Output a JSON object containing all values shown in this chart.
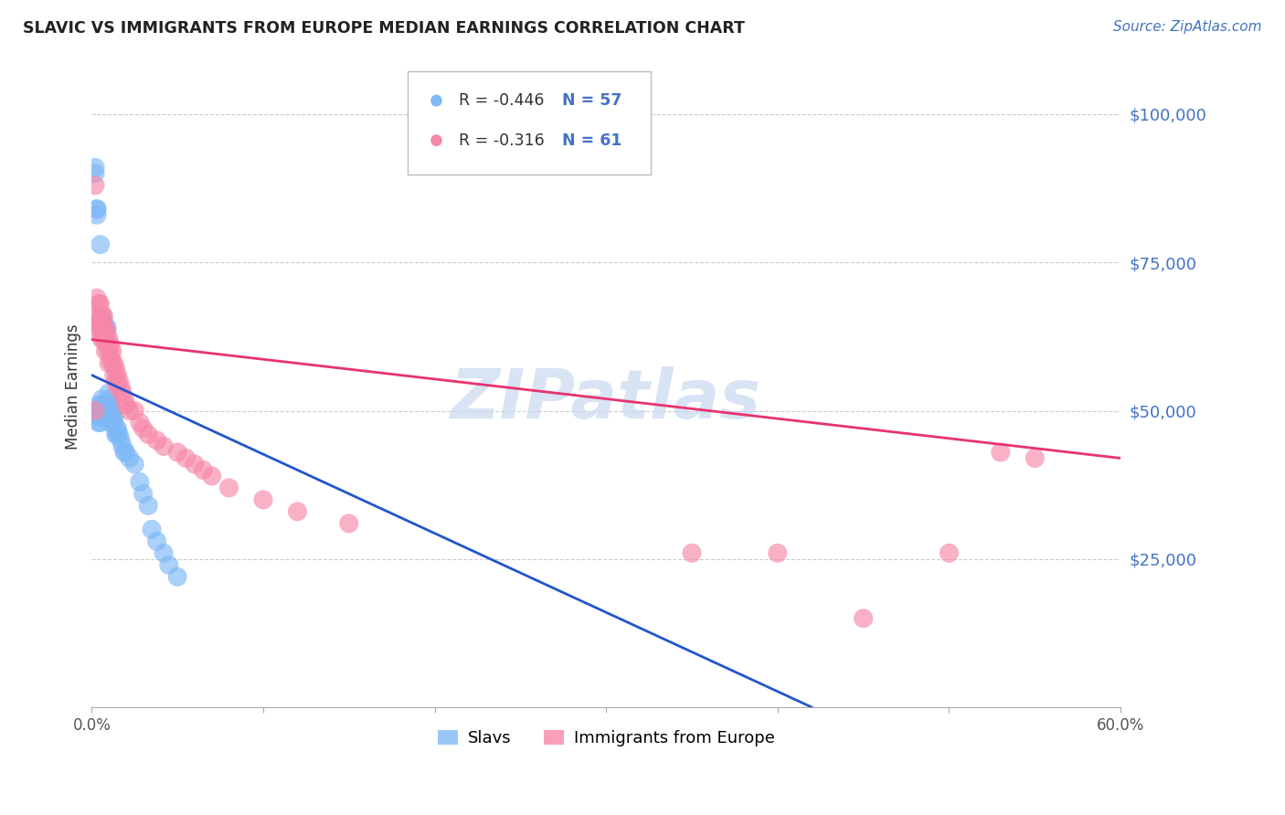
{
  "title": "SLAVIC VS IMMIGRANTS FROM EUROPE MEDIAN EARNINGS CORRELATION CHART",
  "source": "Source: ZipAtlas.com",
  "ylabel": "Median Earnings",
  "yticks": [
    0,
    25000,
    50000,
    75000,
    100000
  ],
  "ytick_labels": [
    "",
    "$25,000",
    "$50,000",
    "$75,000",
    "$100,000"
  ],
  "ylim": [
    0,
    108000
  ],
  "xlim": [
    0.0,
    0.6
  ],
  "bg_color": "#ffffff",
  "grid_color": "#cccccc",
  "slavs_color": "#7eb8f7",
  "immigrants_color": "#f787a8",
  "slavs_line_color": "#2255cc",
  "immigrants_line_color": "#e8336e",
  "watermark_color": "#c8d8f0",
  "slavs_r": "R = -0.446",
  "slavs_n": "N = 57",
  "imm_r": "R = -0.316",
  "imm_n": "N = 61",
  "slavs_x": [
    0.002,
    0.002,
    0.003,
    0.003,
    0.003,
    0.004,
    0.004,
    0.004,
    0.004,
    0.004,
    0.005,
    0.005,
    0.005,
    0.005,
    0.006,
    0.006,
    0.006,
    0.006,
    0.007,
    0.007,
    0.007,
    0.007,
    0.008,
    0.008,
    0.008,
    0.009,
    0.009,
    0.009,
    0.01,
    0.01,
    0.01,
    0.011,
    0.011,
    0.011,
    0.012,
    0.012,
    0.013,
    0.013,
    0.014,
    0.014,
    0.015,
    0.015,
    0.016,
    0.017,
    0.018,
    0.019,
    0.02,
    0.022,
    0.025,
    0.028,
    0.03,
    0.033,
    0.038,
    0.042,
    0.05,
    0.035,
    0.045
  ],
  "slavs_y": [
    91000,
    90000,
    84000,
    84000,
    83000,
    50000,
    51000,
    50000,
    49000,
    48000,
    78000,
    50000,
    49000,
    48000,
    66000,
    64000,
    52000,
    51000,
    65000,
    63000,
    51000,
    50000,
    64000,
    51000,
    49000,
    64000,
    51000,
    50000,
    53000,
    51000,
    49000,
    52000,
    50000,
    48000,
    50000,
    49000,
    49000,
    48000,
    47000,
    46000,
    47000,
    46000,
    46000,
    45000,
    44000,
    43000,
    43000,
    42000,
    41000,
    38000,
    36000,
    34000,
    28000,
    26000,
    22000,
    30000,
    24000
  ],
  "immigrants_x": [
    0.002,
    0.002,
    0.003,
    0.003,
    0.004,
    0.004,
    0.004,
    0.005,
    0.005,
    0.005,
    0.006,
    0.006,
    0.006,
    0.007,
    0.007,
    0.007,
    0.008,
    0.008,
    0.008,
    0.009,
    0.009,
    0.01,
    0.01,
    0.01,
    0.011,
    0.011,
    0.012,
    0.012,
    0.013,
    0.013,
    0.014,
    0.014,
    0.015,
    0.015,
    0.016,
    0.017,
    0.018,
    0.019,
    0.02,
    0.022,
    0.025,
    0.028,
    0.03,
    0.033,
    0.038,
    0.042,
    0.05,
    0.055,
    0.06,
    0.065,
    0.07,
    0.08,
    0.1,
    0.12,
    0.15,
    0.35,
    0.4,
    0.45,
    0.5,
    0.53,
    0.55
  ],
  "immigrants_y": [
    88000,
    50000,
    69000,
    65000,
    68000,
    66000,
    64000,
    68000,
    65000,
    63000,
    66000,
    64000,
    62000,
    66000,
    64000,
    62000,
    64000,
    62000,
    60000,
    63000,
    61000,
    62000,
    60000,
    58000,
    61000,
    59000,
    60000,
    58000,
    58000,
    56000,
    57000,
    55000,
    56000,
    54000,
    55000,
    54000,
    53000,
    52000,
    51000,
    50000,
    50000,
    48000,
    47000,
    46000,
    45000,
    44000,
    43000,
    42000,
    41000,
    40000,
    39000,
    37000,
    35000,
    33000,
    31000,
    26000,
    26000,
    15000,
    26000,
    43000,
    42000
  ],
  "slavs_line_x0": 0.0,
  "slavs_line_y0": 56000,
  "slavs_line_x1": 0.42,
  "slavs_line_y1": 0,
  "imm_line_x0": 0.0,
  "imm_line_y0": 62000,
  "imm_line_x1": 0.6,
  "imm_line_y1": 42000
}
